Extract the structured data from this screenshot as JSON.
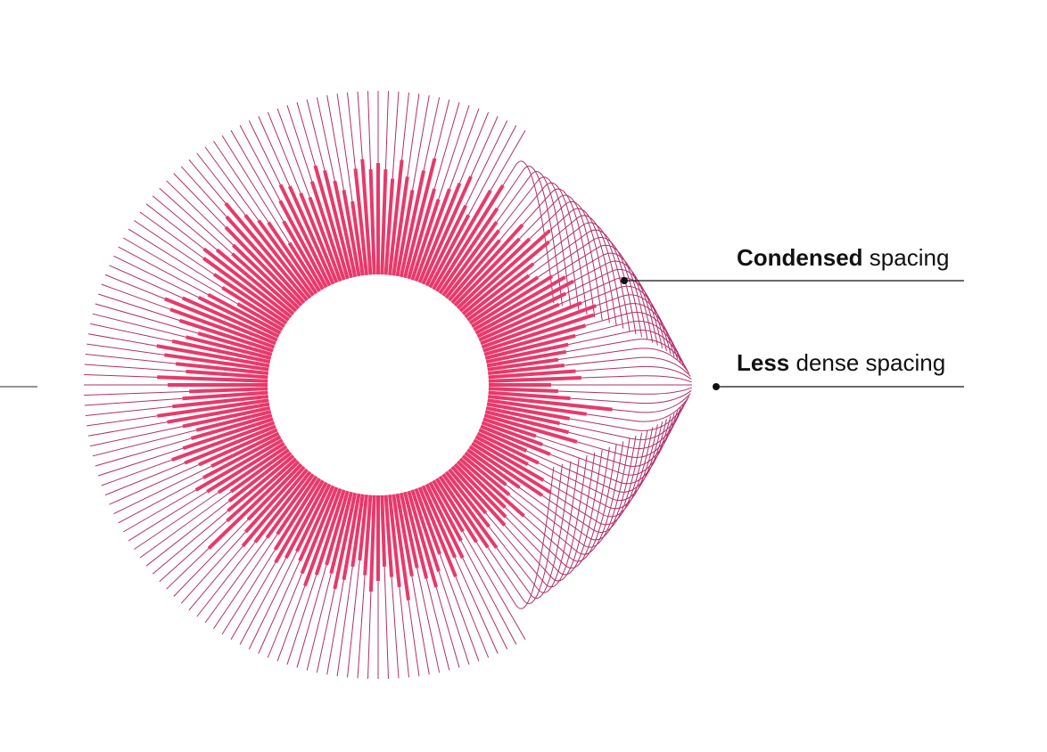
{
  "annotations": {
    "condensed": {
      "emphasis": "Condensed",
      "rest": " spacing"
    },
    "less_dense": {
      "emphasis": "Less",
      "rest": " dense spacing"
    }
  },
  "colors": {
    "bar": "#e8396a",
    "spoke": "#b0306a",
    "annotation_line": "#111111",
    "background": "#ffffff"
  },
  "radial": {
    "spoke_count": 180,
    "bar_lengths": [
      125,
      118,
      108,
      130,
      112,
      98,
      122,
      138,
      105,
      95,
      110,
      120,
      132,
      100,
      92,
      128,
      140,
      115,
      102,
      96,
      88,
      118,
      104,
      112,
      135,
      126,
      97,
      85,
      92,
      106,
      118,
      124,
      110,
      98,
      122,
      136,
      130,
      118,
      104,
      94,
      90,
      80,
      86,
      98,
      104,
      70,
      78,
      92,
      140,
      112,
      94,
      84,
      96,
      108,
      62,
      72,
      84,
      58,
      76,
      66,
      90,
      104,
      98,
      72,
      58,
      68,
      96,
      74,
      82,
      88,
      64,
      78,
      102,
      96,
      84,
      66,
      74,
      92,
      88,
      108,
      78,
      96,
      112,
      100,
      86,
      94,
      120,
      104,
      92,
      80,
      96,
      108,
      90,
      74,
      82,
      98,
      110,
      94,
      86,
      100,
      116,
      104,
      92,
      84,
      96,
      106,
      94,
      78,
      88,
      100,
      112,
      98,
      86,
      140,
      104,
      96,
      88,
      80,
      92,
      102,
      112,
      98,
      84,
      96,
      110,
      122,
      106,
      94,
      86,
      100,
      116,
      126,
      108,
      96,
      88,
      112,
      124,
      92,
      104,
      118,
      128,
      112,
      98,
      86,
      110,
      124,
      134,
      116,
      100,
      92,
      58,
      82,
      98,
      118,
      124,
      112,
      96,
      102,
      122,
      130,
      142,
      118,
      104,
      96,
      64,
      88,
      110,
      126,
      120,
      108,
      100,
      116,
      132,
      124,
      110,
      98,
      84,
      120,
      130,
      118
    ]
  }
}
